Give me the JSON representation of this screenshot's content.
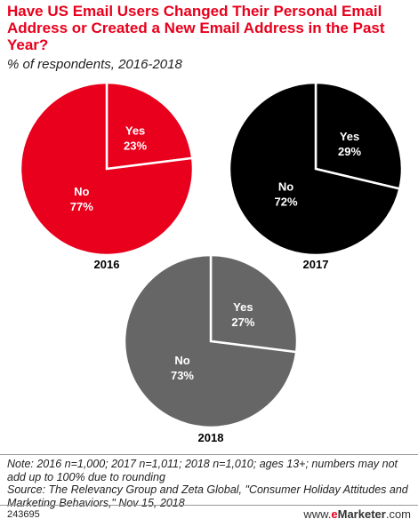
{
  "header": {
    "title": "Have US Email Users Changed Their Personal Email Address or Created a New Email Address in the Past Year?",
    "subtitle": "% of respondents, 2016-2018"
  },
  "chart_data": [
    {
      "type": "pie",
      "title": "2016",
      "categories": [
        "Yes",
        "No"
      ],
      "values": [
        23,
        77
      ],
      "colors": {
        "Yes": "#e8001c",
        "No": "#e8001c"
      }
    },
    {
      "type": "pie",
      "title": "2017",
      "categories": [
        "Yes",
        "No"
      ],
      "values": [
        29,
        72
      ],
      "colors": {
        "Yes": "#000000",
        "No": "#000000"
      }
    },
    {
      "type": "pie",
      "title": "2018",
      "categories": [
        "Yes",
        "No"
      ],
      "values": [
        27,
        73
      ],
      "colors": {
        "Yes": "#666666",
        "No": "#666666"
      }
    }
  ],
  "footer": {
    "note": "Note: 2016 n=1,000; 2017 n=1,011; 2018 n=1,010; ages 13+; numbers may not add up to 100% due to rounding",
    "source": "Source: The Relevancy Group and Zeta Global, \"Consumer Holiday Attitudes and Marketing Behaviors,\" Nov 15, 2018",
    "chart_id": "243695",
    "brand_prefix": "www.",
    "brand_e": "e",
    "brand_name": "Marketer",
    "brand_suffix": ".com"
  }
}
